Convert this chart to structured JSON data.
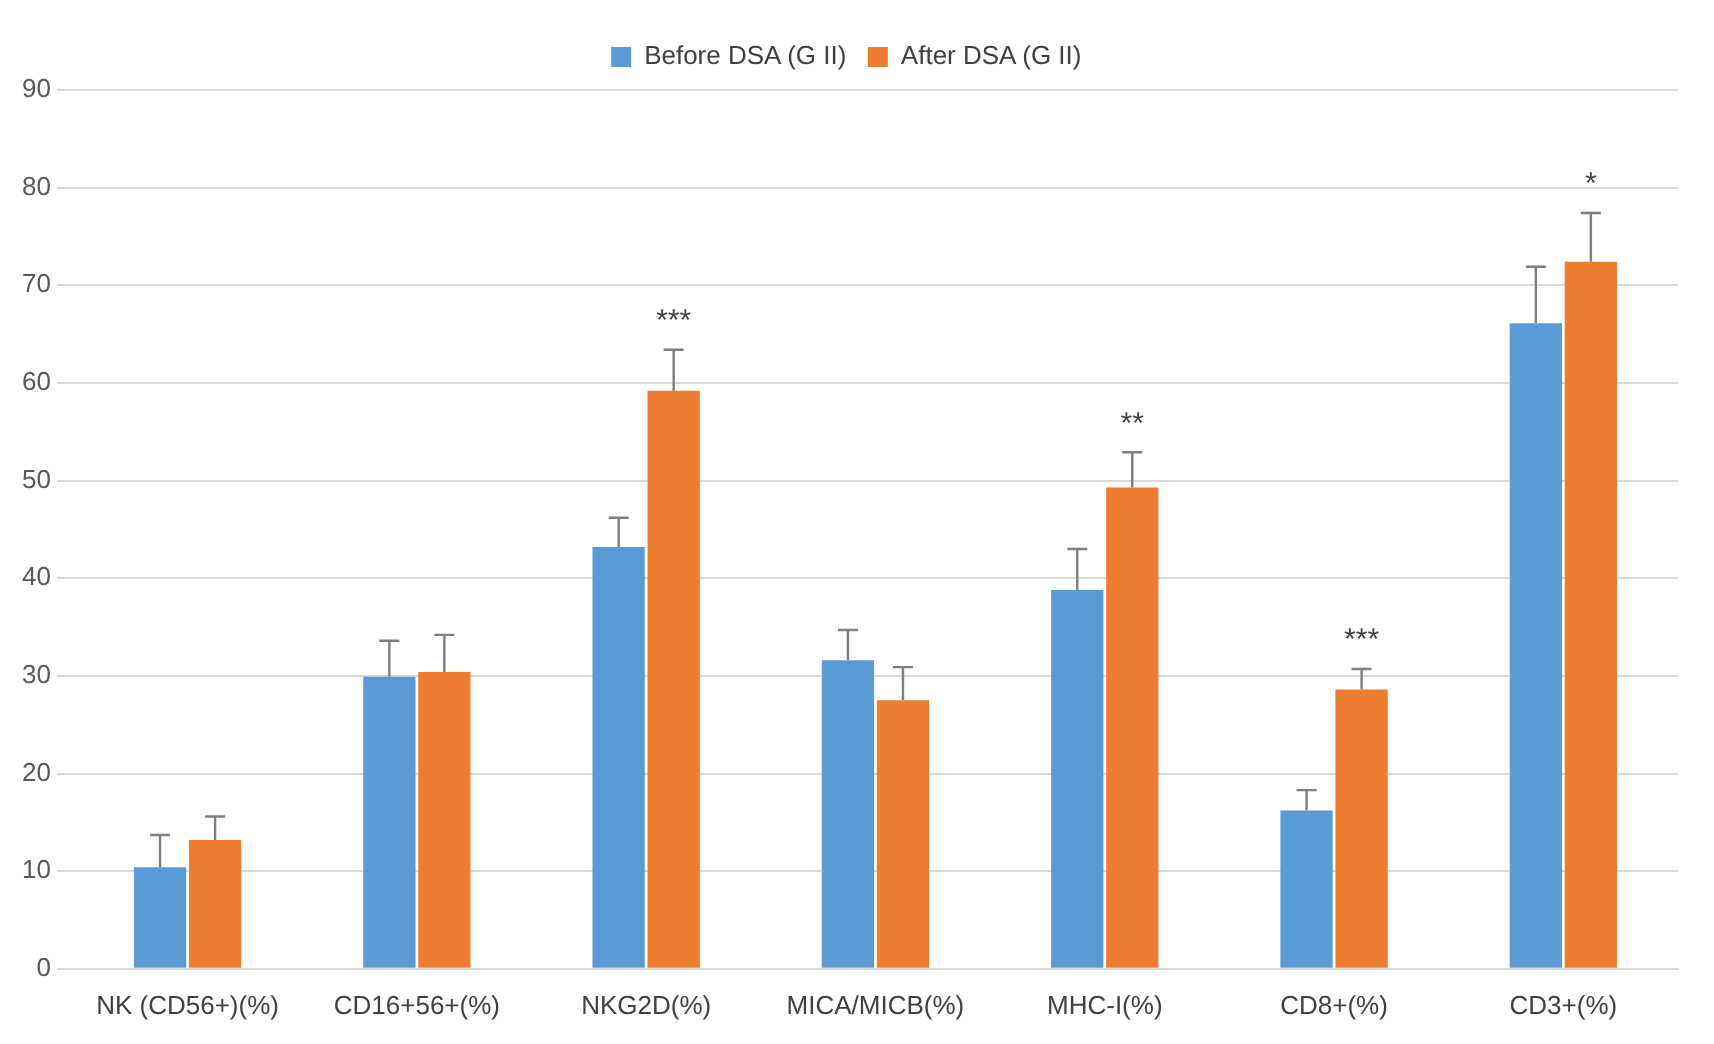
{
  "chart_data": {
    "type": "bar",
    "categories": [
      "NK (CD56+)(%)",
      "CD16+56+(%)",
      "NKG2D(%)",
      "MICA/MICB(%)",
      "MHC-I(%)",
      "CD8+(%)",
      "CD3+(%)"
    ],
    "series": [
      {
        "name": "Before DSA (G II)",
        "color": "#5b9bd5",
        "values": [
          10.4,
          29.9,
          43.2,
          31.6,
          38.8,
          16.2,
          66.1
        ],
        "errors": [
          [
            10.4,
            13.7
          ],
          [
            29.9,
            33.6
          ],
          [
            43.2,
            46.2
          ],
          [
            31.6,
            34.7
          ],
          [
            38.8,
            43.0
          ],
          [
            16.2,
            18.3
          ],
          [
            66.1,
            71.9
          ]
        ]
      },
      {
        "name": "After DSA (G II)",
        "color": "#ed7d31",
        "values": [
          13.2,
          30.4,
          59.2,
          27.5,
          49.3,
          28.6,
          72.4
        ],
        "errors": [
          [
            13.2,
            15.6
          ],
          [
            30.4,
            34.2
          ],
          [
            59.2,
            63.4
          ],
          [
            27.5,
            30.9
          ],
          [
            49.3,
            52.9
          ],
          [
            28.6,
            30.7
          ],
          [
            72.4,
            77.4
          ]
        ]
      }
    ],
    "annotations": [
      {
        "text": "***",
        "x": "NKG2D(%)",
        "y": 59.2
      },
      {
        "text": "**",
        "x": "MHC-I(%)",
        "y": 49.3
      },
      {
        "text": "***",
        "x": "CD8+(%)",
        "y": 28.6
      },
      {
        "text": "*",
        "x": "CD3+(%)",
        "y": 72.4
      }
    ],
    "ylim": [
      0,
      90
    ],
    "yticks": [
      0,
      10,
      20,
      30,
      40,
      50,
      60,
      70,
      80,
      90
    ],
    "grid": "y",
    "legend": "top"
  }
}
